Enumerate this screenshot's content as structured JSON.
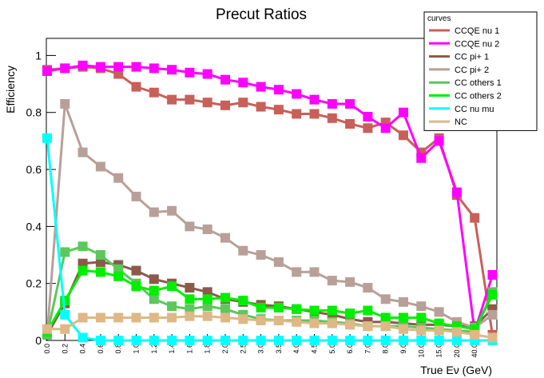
{
  "chart_data": {
    "type": "line",
    "title": "Precut Ratios",
    "x_label": "True Eν (GeV)",
    "y_label": "Efficiency",
    "legend_title": "curves",
    "categories": [
      "0.0",
      "0.2",
      "0.4",
      "0.6",
      "0.8",
      "1.0",
      "1.2",
      "1.4",
      "1.6",
      "1.8",
      "2.0",
      "2.5",
      "3.0",
      "3.5",
      "4.0",
      "4.5",
      "5.0",
      "6.0",
      "7.0",
      "8.0",
      "9.0",
      "10.0",
      "15.0",
      "20.0",
      "40.0",
      null
    ],
    "ylim": [
      0,
      1.06
    ],
    "yticks": [
      0,
      0.2,
      0.4,
      0.6,
      0.8,
      1
    ],
    "legend": "upper right",
    "series": [
      {
        "name": "CCQE nu 1",
        "color": "#c8605a",
        "values": [
          0.95,
          0.955,
          0.96,
          0.955,
          0.935,
          0.89,
          0.87,
          0.845,
          0.845,
          0.835,
          0.825,
          0.835,
          0.82,
          0.81,
          0.795,
          0.795,
          0.78,
          0.76,
          0.745,
          0.765,
          0.72,
          0.66,
          0.71,
          0.51,
          0.43,
          0.02
        ]
      },
      {
        "name": "CCQE nu 2",
        "color": "#ff00ff",
        "values": [
          0.945,
          0.955,
          0.965,
          0.96,
          0.96,
          0.96,
          0.955,
          0.95,
          0.94,
          0.935,
          0.915,
          0.905,
          0.89,
          0.88,
          0.865,
          0.845,
          0.83,
          0.83,
          0.785,
          0.745,
          0.8,
          0.64,
          0.7,
          0.52,
          0.03,
          0.23
        ]
      },
      {
        "name": "CC pi+ 1",
        "color": "#8b5a4a",
        "values": [
          0.02,
          0.13,
          0.27,
          0.275,
          0.265,
          0.245,
          0.215,
          0.2,
          0.185,
          0.17,
          0.145,
          0.135,
          0.125,
          0.12,
          0.11,
          0.1,
          0.09,
          0.075,
          0.065,
          0.065,
          0.06,
          0.055,
          0.055,
          0.05,
          0.05,
          0.11
        ]
      },
      {
        "name": "CC pi+ 2",
        "color": "#b8a098",
        "values": [
          0.02,
          0.83,
          0.66,
          0.61,
          0.57,
          0.505,
          0.45,
          0.455,
          0.4,
          0.39,
          0.36,
          0.315,
          0.3,
          0.275,
          0.24,
          0.24,
          0.21,
          0.205,
          0.185,
          0.145,
          0.135,
          0.12,
          0.1,
          0.065,
          0.045,
          0.09
        ]
      },
      {
        "name": "CC others 1",
        "color": "#5ac85a",
        "values": [
          0.02,
          0.31,
          0.33,
          0.3,
          0.25,
          0.2,
          0.145,
          0.12,
          0.11,
          0.12,
          0.11,
          0.09,
          0.075,
          0.07,
          0.07,
          0.07,
          0.065,
          0.06,
          0.05,
          0.05,
          0.05,
          0.045,
          0.04,
          0.035,
          0.03,
          0.17
        ]
      },
      {
        "name": "CC others 2",
        "color": "#00ee00",
        "values": [
          0.03,
          0.14,
          0.245,
          0.24,
          0.225,
          0.19,
          0.175,
          0.19,
          0.145,
          0.145,
          0.15,
          0.14,
          0.115,
          0.115,
          0.11,
          0.105,
          0.105,
          0.095,
          0.105,
          0.08,
          0.08,
          0.08,
          0.06,
          0.05,
          0.04,
          0.16
        ]
      },
      {
        "name": "CC nu mu",
        "color": "#00ffff",
        "values": [
          0.71,
          0.09,
          0.01,
          0,
          0,
          0,
          0,
          0,
          0,
          0,
          0,
          0,
          0,
          0,
          0,
          0,
          0,
          0,
          0,
          0,
          0,
          0,
          0,
          0,
          0,
          0
        ]
      },
      {
        "name": "NC",
        "color": "#deb887",
        "values": [
          0.04,
          0.04,
          0.08,
          0.08,
          0.08,
          0.08,
          0.08,
          0.08,
          0.085,
          0.085,
          0.08,
          0.075,
          0.07,
          0.07,
          0.065,
          0.06,
          0.06,
          0.055,
          0.05,
          0.05,
          0.04,
          0.035,
          0.035,
          0.03,
          0.02,
          0.01
        ]
      }
    ]
  }
}
